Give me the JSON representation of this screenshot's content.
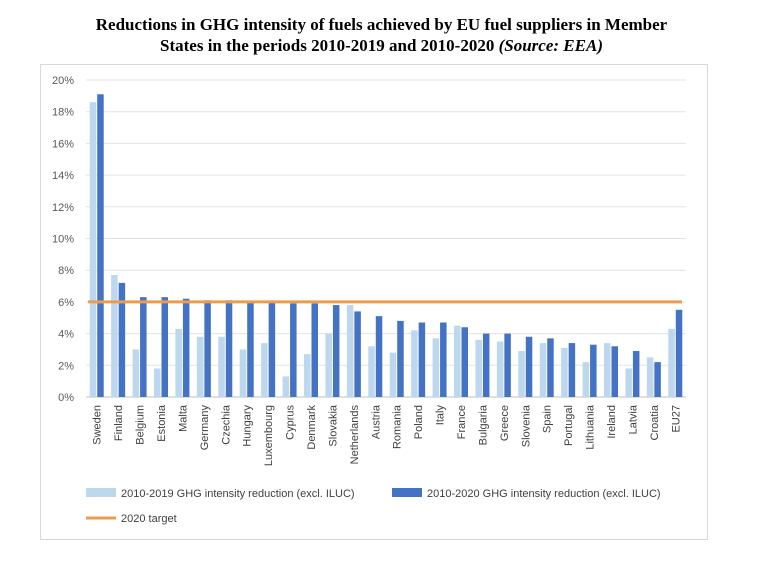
{
  "title_line1": "Reductions in GHG intensity of fuels achieved by EU fuel suppliers in Member",
  "title_line2": "States in the periods 2010-2019 and 2010-2020",
  "title_source": "(Source: EEA)",
  "chart_data": {
    "type": "bar",
    "categories": [
      "Sweden",
      "Finland",
      "Belgium",
      "Estonia",
      "Malta",
      "Germany",
      "Czechia",
      "Hungary",
      "Luxembourg",
      "Cyprus",
      "Denmark",
      "Slovakia",
      "Netherlands",
      "Austria",
      "Romania",
      "Poland",
      "Italy",
      "France",
      "Bulgaria",
      "Greece",
      "Slovenia",
      "Spain",
      "Portugal",
      "Lithuania",
      "Ireland",
      "Latvia",
      "Croatia",
      "EU27"
    ],
    "series": [
      {
        "name": "2010-2019 GHG intensity reduction (excl. ILUC)",
        "color": "#bdd7ee",
        "values": [
          18.6,
          7.7,
          3.0,
          1.8,
          4.3,
          3.8,
          3.8,
          3.0,
          3.4,
          1.3,
          2.7,
          4.0,
          5.8,
          3.2,
          2.8,
          4.2,
          3.7,
          4.5,
          3.6,
          3.5,
          2.9,
          3.4,
          3.1,
          2.2,
          3.4,
          1.8,
          2.5,
          4.3
        ]
      },
      {
        "name": "2010-2020 GHG intensity reduction (excl. ILUC)",
        "color": "#4472c4",
        "values": [
          19.1,
          7.2,
          6.3,
          6.3,
          6.2,
          6.1,
          6.1,
          6.0,
          6.0,
          5.9,
          5.9,
          5.8,
          5.4,
          5.1,
          4.8,
          4.7,
          4.7,
          4.4,
          4.0,
          4.0,
          3.8,
          3.7,
          3.4,
          3.3,
          3.2,
          2.9,
          2.2,
          5.5
        ]
      }
    ],
    "target": {
      "name": "2020 target",
      "value": 6.0,
      "color": "#ed9c4d"
    },
    "yticks": [
      "0%",
      "2%",
      "4%",
      "6%",
      "8%",
      "10%",
      "12%",
      "14%",
      "16%",
      "18%",
      "20%"
    ],
    "ylim": [
      0,
      20
    ],
    "grid": true,
    "legend_position": "bottom"
  }
}
